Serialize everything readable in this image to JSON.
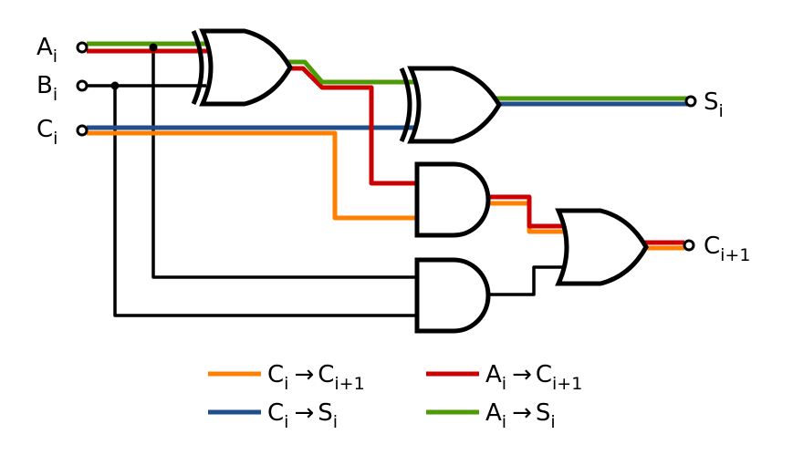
{
  "inputs": [
    {
      "id": "a",
      "main": "A",
      "sub": "i"
    },
    {
      "id": "b",
      "main": "B",
      "sub": "i"
    },
    {
      "id": "c",
      "main": "C",
      "sub": "i"
    }
  ],
  "outputs": [
    {
      "id": "s",
      "main": "S",
      "sub": "i"
    },
    {
      "id": "cout",
      "main": "C",
      "sub": "i+1"
    }
  ],
  "legend": [
    {
      "id": "ci-to-cout",
      "color": "#ff7f00",
      "from_main": "C",
      "from_sub": "i",
      "arrow": "→",
      "to_main": "C",
      "to_sub": "i+1"
    },
    {
      "id": "ai-to-cout",
      "color": "#cc0000",
      "from_main": "A",
      "from_sub": "i",
      "arrow": "→",
      "to_main": "C",
      "to_sub": "i+1"
    },
    {
      "id": "ci-to-si",
      "color": "#1f4e8c",
      "from_main": "C",
      "from_sub": "i",
      "arrow": "→",
      "to_main": "S",
      "to_sub": "i"
    },
    {
      "id": "ai-to-si",
      "color": "#4e9a06",
      "from_main": "A",
      "from_sub": "i",
      "arrow": "→",
      "to_main": "S",
      "to_sub": "i"
    }
  ],
  "gates": [
    {
      "id": "xor-1",
      "type": "XOR"
    },
    {
      "id": "xor-2",
      "type": "XOR"
    },
    {
      "id": "and-1",
      "type": "AND"
    },
    {
      "id": "and-2",
      "type": "AND"
    },
    {
      "id": "or-1",
      "type": "OR"
    }
  ],
  "colors": {
    "orange": "#ff7f00",
    "red": "#cc0000",
    "blue": "#1f4e8c",
    "green": "#4e9a06",
    "wire": "#000000"
  }
}
